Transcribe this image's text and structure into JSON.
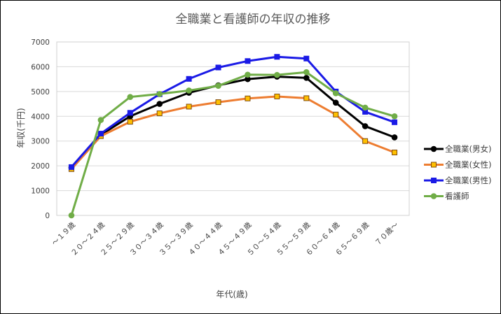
{
  "chart_data": {
    "type": "line",
    "title": "全職業と看護師の年収の推移",
    "xlabel": "年代(歳)",
    "ylabel": "年収(千円)",
    "ylim": [
      0,
      7000
    ],
    "yticks": [
      0,
      1000,
      2000,
      3000,
      4000,
      5000,
      6000,
      7000
    ],
    "grid": true,
    "legend_position": "right",
    "categories": [
      "～１９歳",
      "２０～２４歳",
      "２５～２９歳",
      "３０～３４歳",
      "３５～３９歳",
      "４０～４４歳",
      "４５～４９歳",
      "５０～５４歳",
      "５５～５９歳",
      "６０～６４歳",
      "６５～６９歳",
      "７０歳～"
    ],
    "series": [
      {
        "name": "全職業(男女)",
        "color": "#000000",
        "fill": "#000000",
        "marker": "circle",
        "values": [
          1920,
          3250,
          4000,
          4500,
          4950,
          5250,
          5500,
          5600,
          5550,
          4550,
          3600,
          3150
        ]
      },
      {
        "name": "全職業(女性)",
        "color": "#ED7D31",
        "fill": "#FFC000",
        "marker": "square",
        "values": [
          1870,
          3200,
          3780,
          4120,
          4390,
          4570,
          4720,
          4800,
          4730,
          4070,
          3000,
          2540
        ]
      },
      {
        "name": "全職業(男性)",
        "color": "#1A1AE6",
        "fill": "#1A1AE6",
        "marker": "square",
        "values": [
          1950,
          3300,
          4140,
          4890,
          5510,
          5970,
          6230,
          6400,
          6330,
          5000,
          4180,
          3760
        ]
      },
      {
        "name": "看護師",
        "color": "#70AD47",
        "fill": "#70AD47",
        "marker": "circle",
        "values": [
          0,
          3850,
          4780,
          4900,
          5040,
          5230,
          5680,
          5670,
          5780,
          4930,
          4350,
          4000
        ]
      }
    ]
  }
}
